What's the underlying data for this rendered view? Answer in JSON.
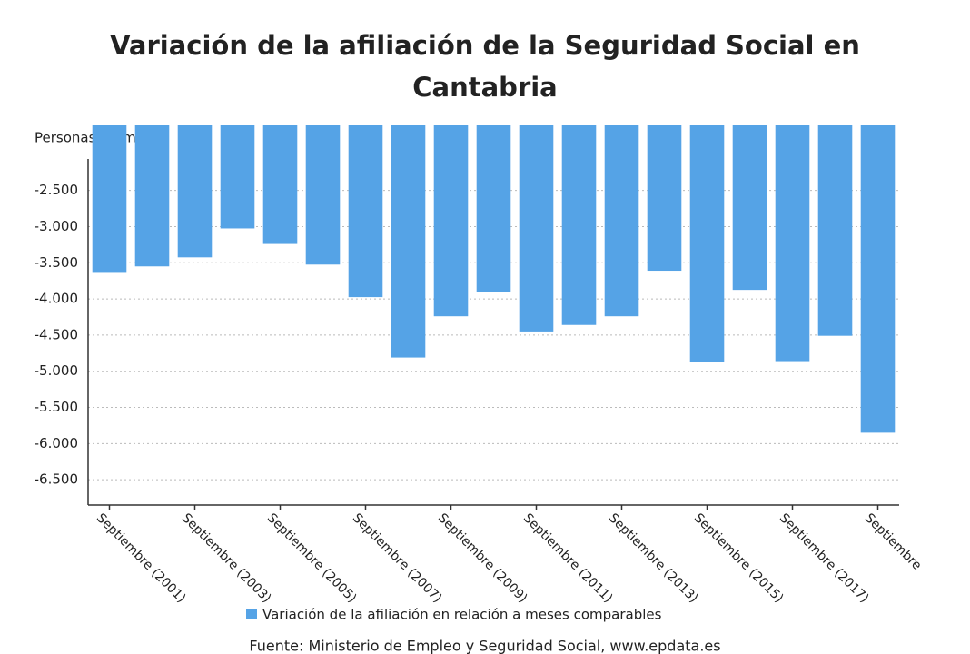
{
  "chart_data": {
    "type": "bar",
    "title": "Variación de la afiliación de la Seguridad Social en Cantabria",
    "y_label": "Personas (número)",
    "categories": [
      "Septiembre (2001)",
      null,
      "Septiembre (2003)",
      null,
      "Septiembre (2005)",
      null,
      "Septiembre (2007)",
      null,
      "Septiembre (2009)",
      null,
      "Septiembre (2011)",
      null,
      "Septiembre (2013)",
      null,
      "Septiembre (2015)",
      null,
      "Septiembre (2017)",
      null,
      "Septiembre"
    ],
    "series": [
      {
        "name": "Variación de la afiliación en relación a meses comparables",
        "color": "#55a3e6",
        "values": [
          -3640,
          -3550,
          -3425,
          -3025,
          -3240,
          -3525,
          -3975,
          -4810,
          -4240,
          -3910,
          -4450,
          -4360,
          -4240,
          -3610,
          -4875,
          -3875,
          -4860,
          -4510,
          -5850
        ]
      }
    ],
    "ylim": [
      -6850,
      -1600
    ],
    "yticks": [
      {
        "value": -2500,
        "label": "-2.500"
      },
      {
        "value": -3000,
        "label": "-3.000"
      },
      {
        "value": -3500,
        "label": "-3.500"
      },
      {
        "value": -4000,
        "label": "-4.000"
      },
      {
        "value": -4500,
        "label": "-4.500"
      },
      {
        "value": -5000,
        "label": "-5.000"
      },
      {
        "value": -5500,
        "label": "-5.500"
      },
      {
        "value": -6000,
        "label": "-6.000"
      },
      {
        "value": -6500,
        "label": "-6.500"
      }
    ],
    "grid": true,
    "source": "Fuente: Ministerio de Empleo y Seguridad Social, www.epdata.es"
  }
}
